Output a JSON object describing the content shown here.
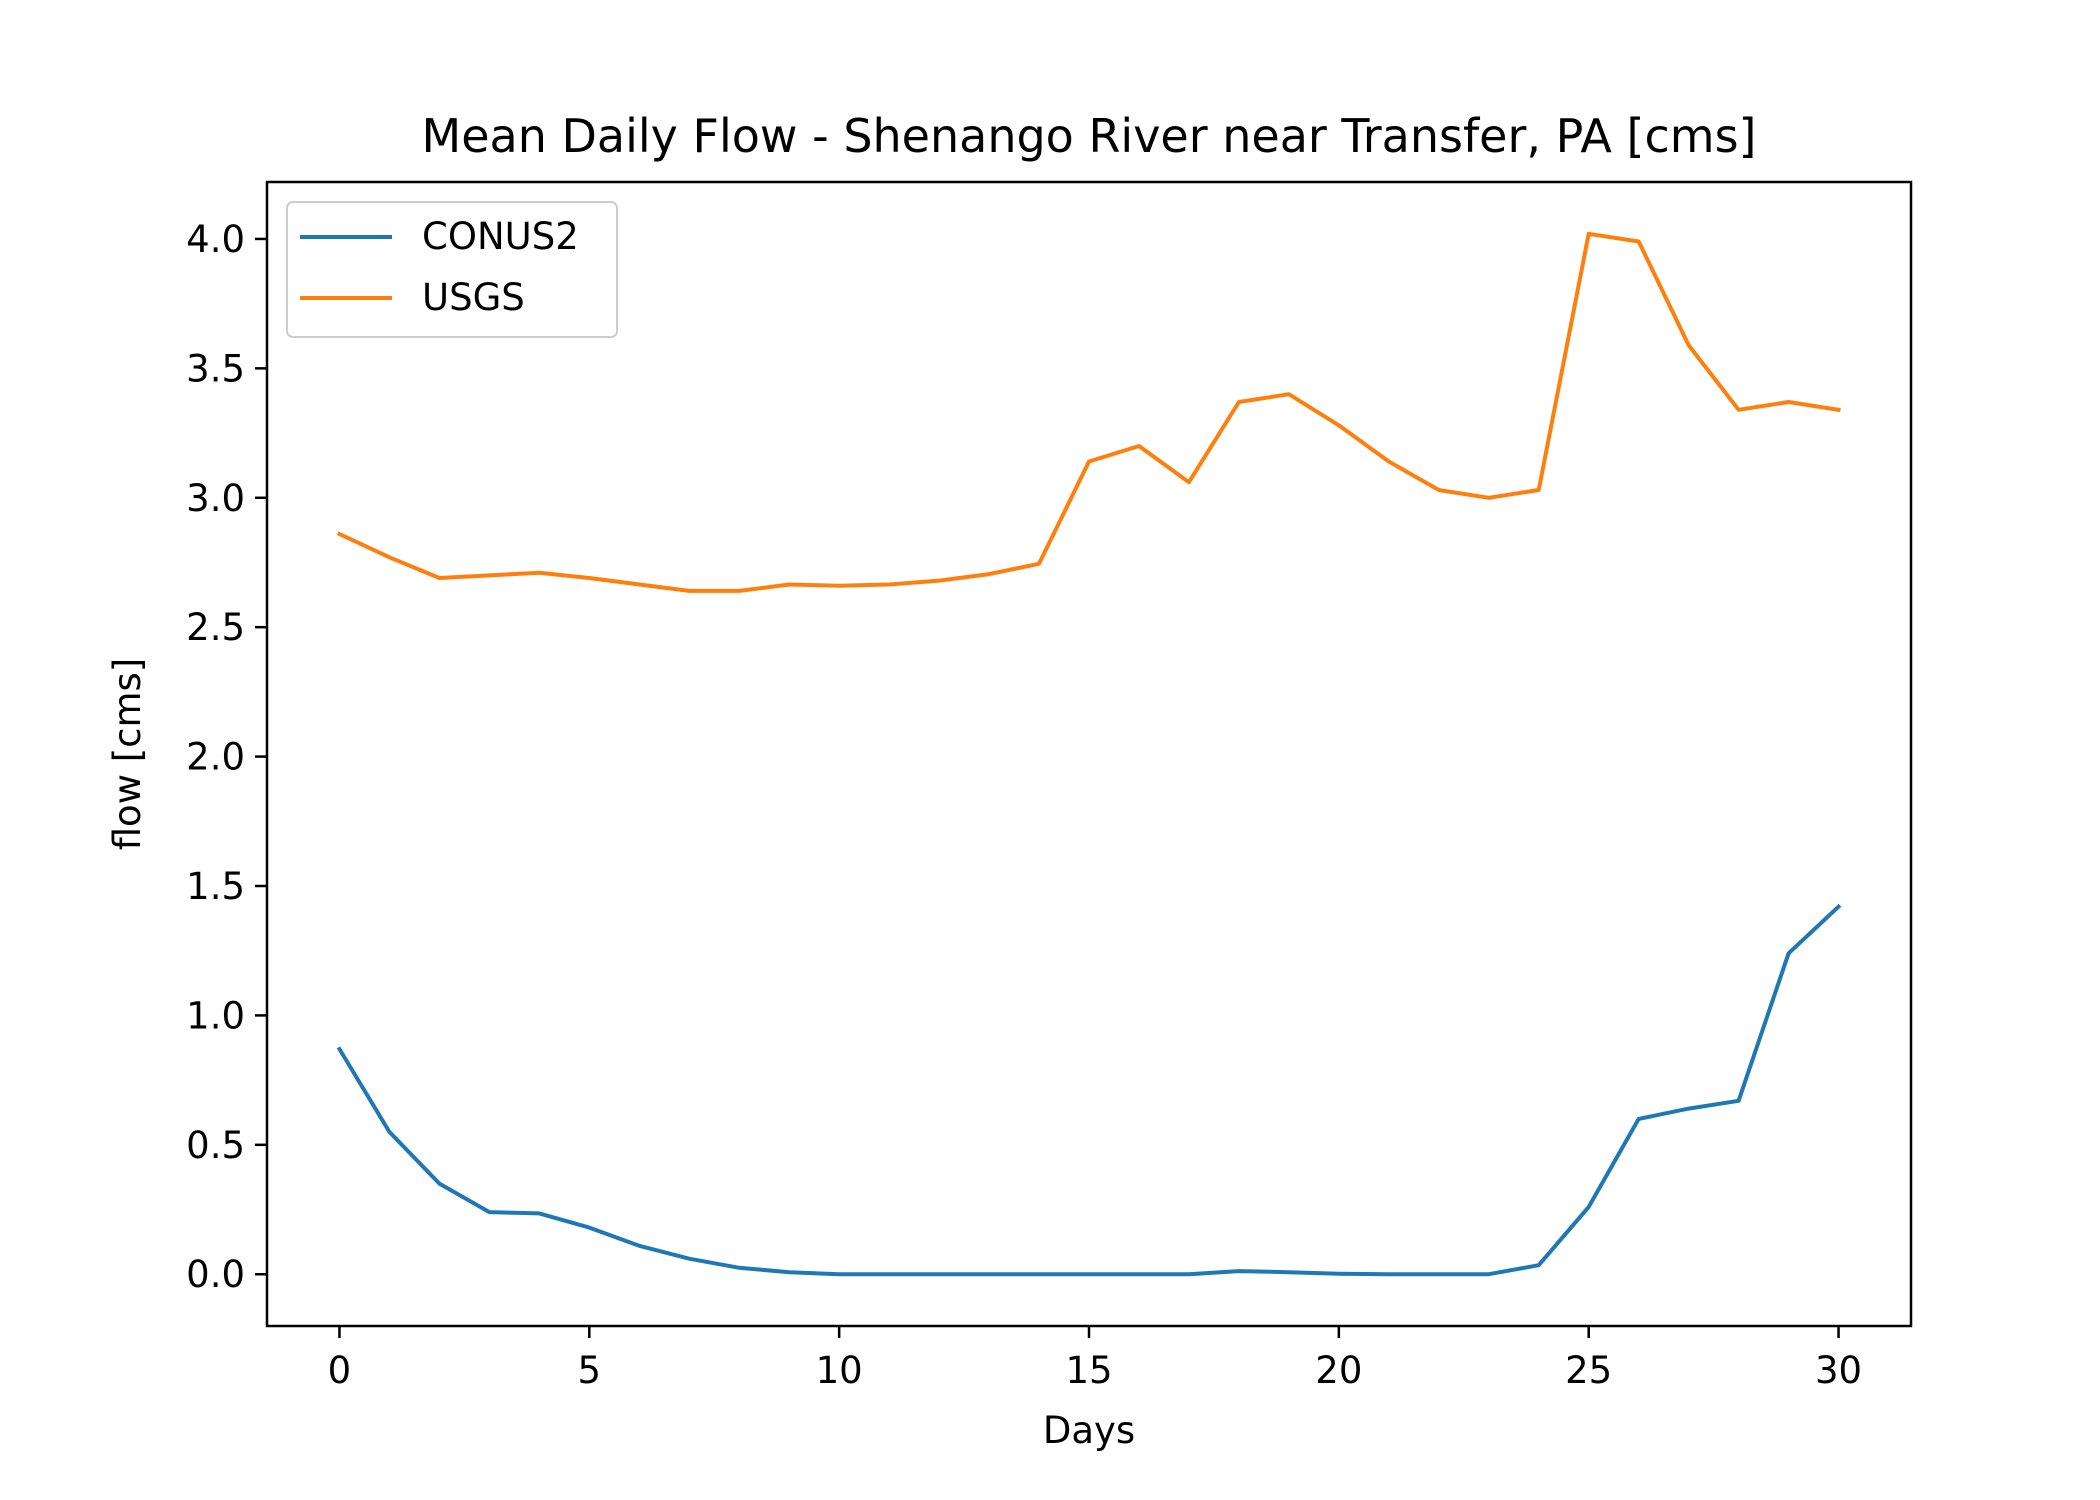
{
  "chart_data": {
    "type": "line",
    "title": "Mean Daily Flow - Shenango River near Transfer, PA [cms]",
    "xlabel": "Days",
    "ylabel": "flow [cms]",
    "xlim": [
      -1.45,
      31.45
    ],
    "ylim": [
      -0.2,
      4.22
    ],
    "x_ticks": [
      0,
      5,
      10,
      15,
      20,
      25,
      30
    ],
    "y_ticks": [
      0.0,
      0.5,
      1.0,
      1.5,
      2.0,
      2.5,
      3.0,
      3.5,
      4.0
    ],
    "grid": false,
    "legend_position": "upper-left",
    "x": [
      0,
      1,
      2,
      3,
      4,
      5,
      6,
      7,
      8,
      9,
      10,
      11,
      12,
      13,
      14,
      15,
      16,
      17,
      18,
      19,
      20,
      21,
      22,
      23,
      24,
      25,
      26,
      27,
      28,
      29,
      30
    ],
    "series": [
      {
        "name": "CONUS2",
        "color": "#1f77b4",
        "values": [
          0.87,
          0.55,
          0.35,
          0.24,
          0.235,
          0.18,
          0.11,
          0.06,
          0.025,
          0.008,
          0.0,
          0.0,
          0.0,
          0.0,
          0.0,
          0.0,
          0.0,
          0.0,
          0.012,
          0.008,
          0.002,
          0.0,
          0.0,
          0.0,
          0.035,
          0.26,
          0.6,
          0.64,
          0.67,
          1.24,
          1.42
        ]
      },
      {
        "name": "USGS",
        "color": "#ff7f0e",
        "values": [
          2.86,
          2.77,
          2.69,
          2.7,
          2.71,
          2.69,
          2.665,
          2.64,
          2.64,
          2.665,
          2.66,
          2.665,
          2.68,
          2.705,
          2.745,
          3.14,
          3.2,
          3.06,
          3.37,
          3.4,
          3.28,
          3.14,
          3.03,
          3.0,
          3.03,
          4.02,
          3.99,
          3.59,
          3.34,
          3.37,
          3.34
        ]
      }
    ]
  }
}
